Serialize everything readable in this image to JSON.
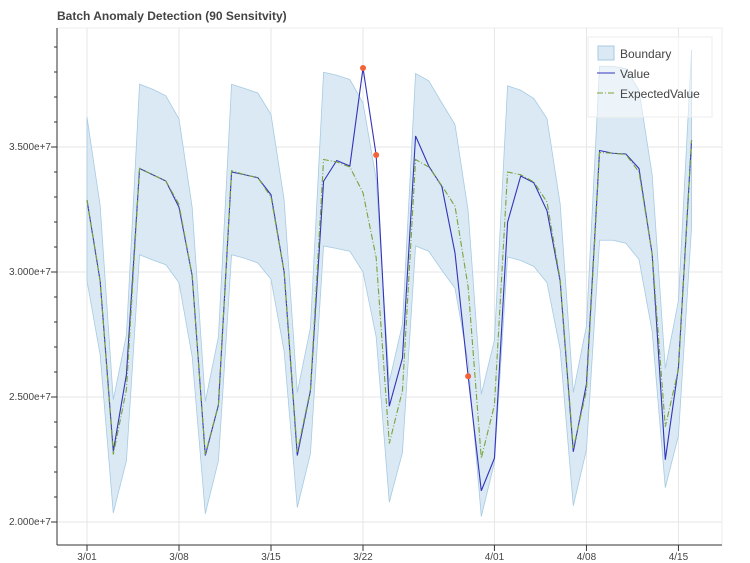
{
  "chart_data": {
    "type": "line",
    "title": "Batch Anomaly Detection (90 Sensitvity)",
    "xlabel": "",
    "ylabel": "",
    "x_start": "2018-03-01",
    "x": [
      "3/01",
      "3/02",
      "3/03",
      "3/04",
      "3/05",
      "3/06",
      "3/07",
      "3/08",
      "3/09",
      "3/10",
      "3/11",
      "3/12",
      "3/13",
      "3/14",
      "3/15",
      "3/16",
      "3/17",
      "3/18",
      "3/19",
      "3/20",
      "3/21",
      "3/22",
      "3/23",
      "3/24",
      "3/25",
      "3/26",
      "3/27",
      "3/28",
      "3/29",
      "3/30",
      "3/31",
      "4/01",
      "4/02",
      "4/03",
      "4/04",
      "4/05",
      "4/06",
      "4/07",
      "4/08",
      "4/09",
      "4/10",
      "4/11",
      "4/12",
      "4/13",
      "4/14",
      "4/15",
      "4/16"
    ],
    "x_ticks": [
      "3/01",
      "3/08",
      "3/15",
      "3/22",
      "4/01",
      "4/08",
      "4/15"
    ],
    "y_ticks": [
      20000000,
      25000000,
      30000000,
      35000000
    ],
    "y_tick_labels": [
      "2.000e+7",
      "2.500e+7",
      "3.000e+7",
      "3.500e+7"
    ],
    "ylim": [
      19080000,
      39760000
    ],
    "grid": true,
    "legend_placement": "top-right",
    "series": [
      {
        "name": "Value",
        "color": "#3333bb",
        "style": "solid",
        "values": [
          32880000,
          29640000,
          22830000,
          25900000,
          34140000,
          33890000,
          33640000,
          32590000,
          29860000,
          22660000,
          24680000,
          34000000,
          33890000,
          33770000,
          33090000,
          30000000,
          22660000,
          25250000,
          33630000,
          34460000,
          34240000,
          38160000,
          34680000,
          24630000,
          26550000,
          35440000,
          34240000,
          33420000,
          30760000,
          25830000,
          21250000,
          22550000,
          31990000,
          33840000,
          33570000,
          32450000,
          29640000,
          22810000,
          25510000,
          34860000,
          34750000,
          34720000,
          34140000,
          30720000,
          22490000,
          26190000,
          35280000
        ]
      },
      {
        "name": "ExpectedValue",
        "color": "#7aa33a",
        "style": "dashdot",
        "values": [
          32880000,
          29640000,
          22700000,
          25300000,
          34140000,
          33890000,
          33640000,
          32700000,
          29860000,
          22700000,
          24700000,
          34050000,
          33890000,
          33770000,
          33000000,
          30000000,
          22800000,
          25300000,
          34500000,
          34400000,
          34200000,
          33170000,
          30580000,
          23140000,
          25250000,
          34500000,
          34200000,
          33450000,
          32630000,
          29400000,
          22550000,
          24680000,
          34000000,
          33890000,
          33600000,
          32800000,
          29700000,
          22950000,
          25250000,
          34780000,
          34750000,
          34700000,
          34000000,
          30720000,
          23810000,
          26100000,
          35280000
        ]
      }
    ],
    "boundary": {
      "name": "Boundary",
      "color": "#a6cbe3",
      "upper": [
        36190000,
        32660000,
        24890000,
        27480000,
        37510000,
        37310000,
        37050000,
        36120000,
        32590000,
        24820000,
        27410000,
        37510000,
        37340000,
        37160000,
        36300000,
        32880000,
        25180000,
        27770000,
        37990000,
        37870000,
        37700000,
        36760000,
        33740000,
        25610000,
        27910000,
        37940000,
        37650000,
        36760000,
        35900000,
        32450000,
        25110000,
        27270000,
        37450000,
        37270000,
        36940000,
        36140000,
        32730000,
        25180000,
        27840000,
        38230000,
        38230000,
        38130000,
        37270000,
        33890000,
        26140000,
        28850000,
        38890000
      ],
      "lower": [
        29640000,
        26690000,
        20360000,
        22450000,
        30690000,
        30480000,
        30290000,
        29570000,
        26620000,
        20330000,
        22450000,
        30690000,
        30550000,
        30360000,
        29710000,
        26830000,
        20580000,
        22730000,
        31040000,
        30940000,
        30830000,
        30000000,
        27410000,
        20790000,
        22780000,
        31040000,
        30830000,
        30070000,
        29350000,
        26400000,
        20220000,
        22370000,
        30600000,
        30460000,
        30220000,
        29570000,
        26910000,
        20650000,
        22880000,
        31270000,
        31270000,
        31150000,
        30500000,
        27630000,
        21370000,
        23450000,
        31800000
      ]
    },
    "anomalies": [
      {
        "x": "3/22",
        "value": 38160000
      },
      {
        "x": "3/23",
        "value": 34680000
      },
      {
        "x": "3/30",
        "value": 25830000
      }
    ],
    "anomaly_color": "#f4623a",
    "legend": [
      "Boundary",
      "Value",
      "ExpectedValue"
    ]
  }
}
